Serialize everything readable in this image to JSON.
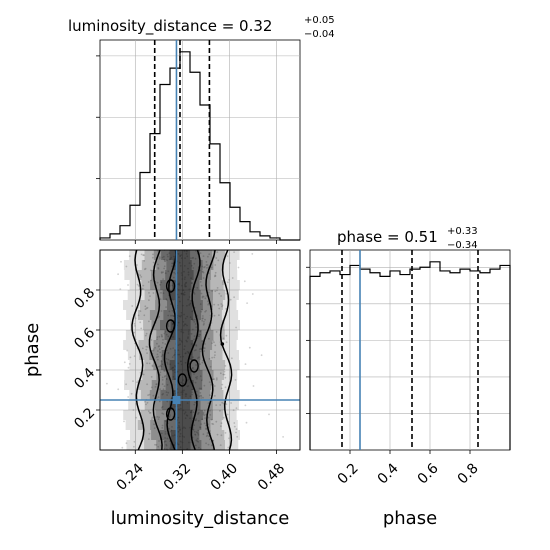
{
  "chart_data": {
    "type": "corner",
    "parameters": [
      "luminosity_distance",
      "phase"
    ],
    "truths": {
      "luminosity_distance": 0.31,
      "phase": 0.25
    },
    "colors": {
      "truth": "#4682b4",
      "hist": "#000000",
      "grid": "#b0b0b0",
      "points": "#9a9a9a"
    },
    "grid": true,
    "panels": {
      "luminosity_distance": {
        "title_prefix": "luminosity_distance = 0.32",
        "title_plus": "+0.05",
        "title_minus": "−0.04",
        "xlim": [
          0.18,
          0.52
        ],
        "hist_edges": [
          0.18,
          0.197,
          0.214,
          0.231,
          0.248,
          0.265,
          0.282,
          0.299,
          0.316,
          0.333,
          0.35,
          0.367,
          0.384,
          0.401,
          0.418,
          0.435,
          0.452,
          0.469,
          0.486,
          0.503,
          0.52
        ],
        "hist_counts": [
          1,
          3,
          7,
          17,
          33,
          52,
          76,
          84,
          92,
          82,
          66,
          47,
          28,
          16,
          9,
          4,
          2,
          1,
          0,
          0
        ],
        "quantiles": [
          0.273,
          0.316,
          0.366
        ],
        "xticks": [
          "0.24",
          "0.32",
          "0.40",
          "0.48"
        ],
        "xtick_values": [
          0.24,
          0.32,
          0.4,
          0.48
        ],
        "xlabel": "luminosity_distance"
      },
      "phase": {
        "title_prefix": "phase = 0.51",
        "title_plus": "+0.33",
        "title_minus": "−0.34",
        "xlim": [
          0.0,
          1.0
        ],
        "hist_edges": [
          0.0,
          0.05,
          0.1,
          0.15,
          0.2,
          0.25,
          0.3,
          0.35,
          0.4,
          0.45,
          0.5,
          0.55,
          0.6,
          0.65,
          0.7,
          0.75,
          0.8,
          0.85,
          0.9,
          0.95,
          1.0
        ],
        "hist_counts": [
          95,
          97,
          98,
          96,
          101,
          99,
          97,
          95,
          98,
          96,
          99,
          100,
          103,
          98,
          97,
          99,
          98,
          97,
          99,
          101
        ],
        "quantiles": [
          0.16,
          0.51,
          0.84
        ],
        "xticks": [
          "0.2",
          "0.4",
          "0.6",
          "0.8"
        ],
        "xtick_values": [
          0.2,
          0.4,
          0.6,
          0.8
        ],
        "xlabel": "phase"
      },
      "joint": {
        "xlim": [
          0.18,
          0.52
        ],
        "ylim": [
          0.0,
          1.0
        ],
        "yticks": [
          "0.2",
          "0.4",
          "0.6",
          "0.8"
        ],
        "ytick_values": [
          0.2,
          0.4,
          0.6,
          0.8
        ],
        "ylabel": "phase"
      }
    }
  }
}
